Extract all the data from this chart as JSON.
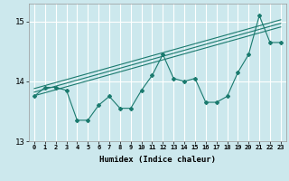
{
  "xlabel": "Humidex (Indice chaleur)",
  "bg_color": "#cce8ed",
  "grid_color": "#ffffff",
  "line_color": "#1a7a6e",
  "x_data": [
    0,
    1,
    2,
    3,
    4,
    5,
    6,
    7,
    8,
    9,
    10,
    11,
    12,
    13,
    14,
    15,
    16,
    17,
    18,
    19,
    20,
    21,
    22,
    23
  ],
  "series1": [
    13.75,
    13.9,
    13.9,
    13.85,
    13.35,
    13.35,
    13.6,
    13.75,
    13.55,
    13.55,
    13.85,
    14.1,
    14.45,
    14.05,
    14.0,
    14.05,
    13.65,
    13.65,
    13.75,
    14.15,
    14.45,
    15.1,
    14.65,
    14.65
  ],
  "trend1": [
    13.76,
    13.81,
    13.86,
    13.91,
    13.96,
    14.01,
    14.06,
    14.11,
    14.16,
    14.21,
    14.26,
    14.31,
    14.36,
    14.41,
    14.46,
    14.51,
    14.56,
    14.61,
    14.66,
    14.71,
    14.76,
    14.81,
    14.86,
    14.91
  ],
  "trend2": [
    13.82,
    13.87,
    13.92,
    13.97,
    14.02,
    14.07,
    14.12,
    14.17,
    14.22,
    14.27,
    14.32,
    14.37,
    14.42,
    14.47,
    14.52,
    14.57,
    14.62,
    14.67,
    14.72,
    14.77,
    14.82,
    14.87,
    14.92,
    14.97
  ],
  "trend3": [
    13.88,
    13.93,
    13.98,
    14.03,
    14.08,
    14.13,
    14.18,
    14.23,
    14.28,
    14.33,
    14.38,
    14.43,
    14.48,
    14.53,
    14.58,
    14.63,
    14.68,
    14.73,
    14.78,
    14.83,
    14.88,
    14.93,
    14.98,
    15.03
  ],
  "ylim": [
    13.0,
    15.3
  ],
  "yticks": [
    13,
    14,
    15
  ],
  "xticks": [
    0,
    1,
    2,
    3,
    4,
    5,
    6,
    7,
    8,
    9,
    10,
    11,
    12,
    13,
    14,
    15,
    16,
    17,
    18,
    19,
    20,
    21,
    22,
    23
  ]
}
